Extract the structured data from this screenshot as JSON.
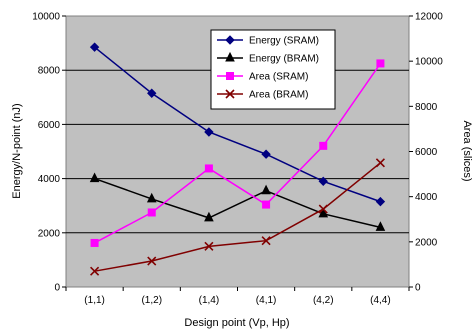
{
  "chart_data": {
    "type": "line",
    "categories": [
      "(1,1)",
      "(1,2)",
      "(1,4)",
      "(4,1)",
      "(4,2)",
      "(4,4)"
    ],
    "xlabel": "Design point (Vp, Hp)",
    "ylabel_left": "Energy/N-point (nJ)",
    "ylabel_right": "Area (slices)",
    "ylim_left": [
      0,
      10000
    ],
    "yticks_left": [
      "0",
      "2000",
      "4000",
      "6000",
      "8000",
      "10000"
    ],
    "ylim_right": [
      0,
      12000
    ],
    "yticks_right": [
      "0",
      "2000",
      "4000",
      "6000",
      "8000",
      "10000",
      "12000"
    ],
    "grid": true,
    "legend_position": "top-right",
    "plot_background": "#c0c0c0",
    "series": [
      {
        "name": "Energy (SRAM)",
        "axis": "left",
        "color": "#000080",
        "marker": "diamond",
        "values": [
          8850,
          7150,
          5720,
          4900,
          3900,
          3150
        ]
      },
      {
        "name": "Energy (BRAM)",
        "axis": "left",
        "color": "#000000",
        "marker": "triangle",
        "values": [
          4000,
          3250,
          2550,
          3550,
          2700,
          2200
        ]
      },
      {
        "name": "Area (SRAM)",
        "axis": "right",
        "color": "#ff00ff",
        "marker": "square",
        "values": [
          1950,
          3300,
          5250,
          3650,
          6250,
          9900
        ]
      },
      {
        "name": "Area (BRAM)",
        "axis": "right",
        "color": "#800000",
        "marker": "x",
        "values": [
          700,
          1150,
          1800,
          2050,
          3450,
          5500
        ]
      }
    ]
  }
}
